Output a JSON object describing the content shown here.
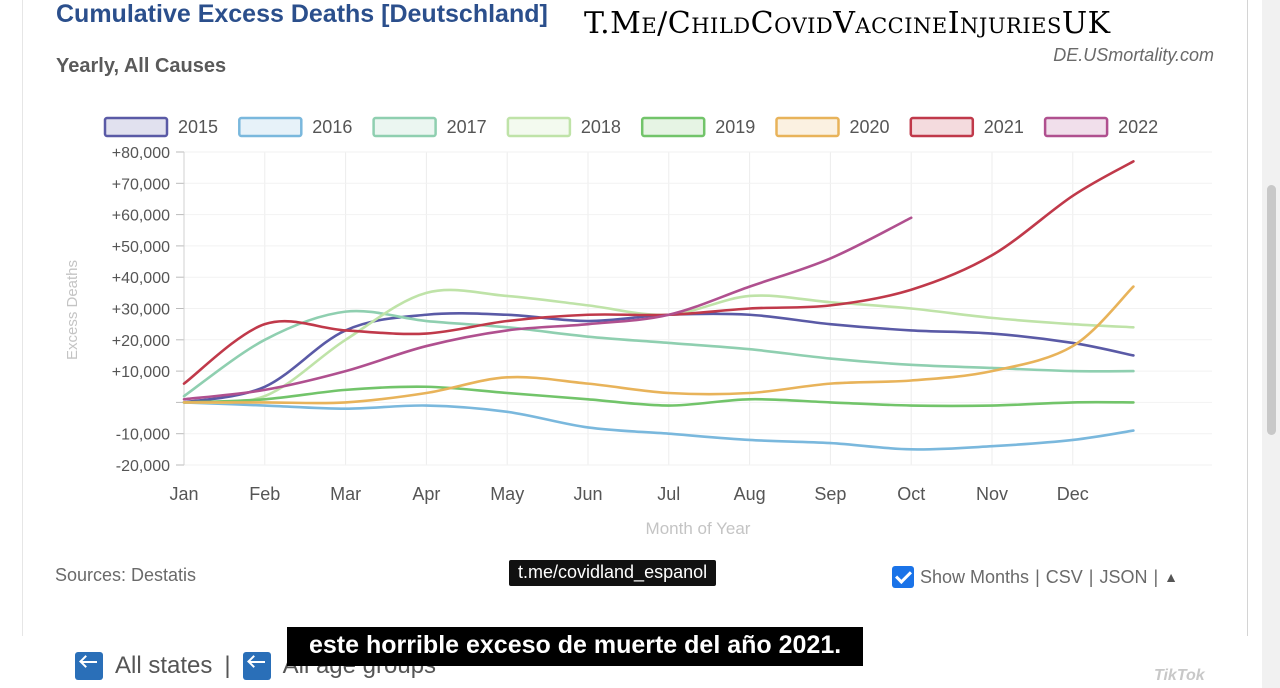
{
  "header": {
    "title": "Cumulative Excess Deaths [Deutschland]",
    "subtitle": "Yearly, All Causes",
    "site": "DE.USmortality.com",
    "watermark": "T.Me/ChildCovidVaccineInjuriesUK"
  },
  "footer": {
    "sources": "Sources: Destatis",
    "overlay_tag": "t.me/covidland_espanol",
    "show_months_label": "Show Months",
    "sep": "|",
    "csv_label": "CSV",
    "json_label": "JSON",
    "caption": "este horrible exceso de muerte del año 2021.",
    "nav_states": "All states",
    "nav_age_groups": "All age groups",
    "tiktok_mark": "TikTok"
  },
  "icons": {
    "checkbox": "checkbox-checked-icon",
    "back": "back-arrow-icon",
    "toggle": "triangle-up-icon"
  },
  "colors": {
    "title": "#2b4f8c",
    "checkbox": "#1a73e8",
    "caption_bg": "#000000"
  },
  "chart_data": {
    "type": "line",
    "title": "Cumulative Excess Deaths [Deutschland]",
    "subtitle": "Yearly, All Causes",
    "xlabel": "Month of Year",
    "ylabel": "Excess Deaths",
    "ylim": [
      -20000,
      80000
    ],
    "xlim": [
      0,
      11.75
    ],
    "grid": true,
    "legend_position": "top",
    "categories": [
      "Jan",
      "Feb",
      "Mar",
      "Apr",
      "May",
      "Jun",
      "Jul",
      "Aug",
      "Sep",
      "Oct",
      "Nov",
      "Dec"
    ],
    "yticks": [
      -20000,
      -10000,
      0,
      10000,
      20000,
      30000,
      40000,
      50000,
      60000,
      70000,
      80000
    ],
    "ytick_labels": [
      "-20,000",
      "-10,000",
      "",
      "+10,000",
      "+20,000",
      "+30,000",
      "+40,000",
      "+50,000",
      "+60,000",
      "+70,000",
      "+80,000"
    ],
    "series": [
      {
        "name": "2015",
        "color": "#5a5aa6",
        "x": [
          0,
          1,
          2,
          3,
          4,
          5,
          6,
          7,
          8,
          9,
          10,
          11,
          11.75
        ],
        "y": [
          0,
          5000,
          23000,
          28000,
          28000,
          26000,
          28000,
          28000,
          25000,
          23000,
          22000,
          19000,
          15000
        ]
      },
      {
        "name": "2016",
        "color": "#7ab8dd",
        "x": [
          0,
          1,
          2,
          3,
          4,
          5,
          6,
          7,
          8,
          9,
          10,
          11,
          11.75
        ],
        "y": [
          0,
          -1000,
          -2000,
          -1000,
          -3000,
          -8000,
          -10000,
          -12000,
          -13000,
          -15000,
          -14000,
          -12000,
          -9000
        ]
      },
      {
        "name": "2017",
        "color": "#8fcfb0",
        "x": [
          0,
          1,
          2,
          3,
          4,
          5,
          6,
          7,
          8,
          9,
          10,
          11,
          11.75
        ],
        "y": [
          2000,
          20000,
          29000,
          26000,
          24000,
          21000,
          19000,
          17000,
          14000,
          12000,
          11000,
          10000,
          10000
        ]
      },
      {
        "name": "2018",
        "color": "#bfe3a8",
        "x": [
          0,
          1,
          2,
          3,
          4,
          5,
          6,
          7,
          8,
          9,
          10,
          11,
          11.75
        ],
        "y": [
          0,
          2000,
          20000,
          35000,
          34000,
          31000,
          28000,
          34000,
          32000,
          30000,
          27000,
          25000,
          24000
        ]
      },
      {
        "name": "2019",
        "color": "#72c46a",
        "x": [
          0,
          1,
          2,
          3,
          4,
          5,
          6,
          7,
          8,
          9,
          10,
          11,
          11.75
        ],
        "y": [
          0,
          1000,
          4000,
          5000,
          3000,
          1000,
          -1000,
          1000,
          0,
          -1000,
          -1000,
          0,
          0
        ]
      },
      {
        "name": "2020",
        "color": "#e8b35a",
        "x": [
          0,
          1,
          2,
          3,
          4,
          5,
          6,
          7,
          8,
          9,
          10,
          11,
          11.75
        ],
        "y": [
          0,
          0,
          0,
          3000,
          8000,
          6000,
          3000,
          3000,
          6000,
          7000,
          10000,
          18000,
          37000
        ]
      },
      {
        "name": "2021",
        "color": "#c0394a",
        "x": [
          0,
          1,
          2,
          3,
          4,
          5,
          6,
          7,
          8,
          9,
          10,
          11,
          11.75
        ],
        "y": [
          6000,
          25000,
          23000,
          22000,
          26000,
          28000,
          28000,
          30000,
          31000,
          36000,
          47000,
          66000,
          77000
        ]
      },
      {
        "name": "2022",
        "color": "#b0508f",
        "x": [
          0,
          1,
          2,
          3,
          4,
          5,
          6,
          7,
          8,
          9
        ],
        "y": [
          1000,
          4000,
          10000,
          18000,
          23000,
          25000,
          28000,
          37000,
          46000,
          59000
        ]
      }
    ]
  }
}
